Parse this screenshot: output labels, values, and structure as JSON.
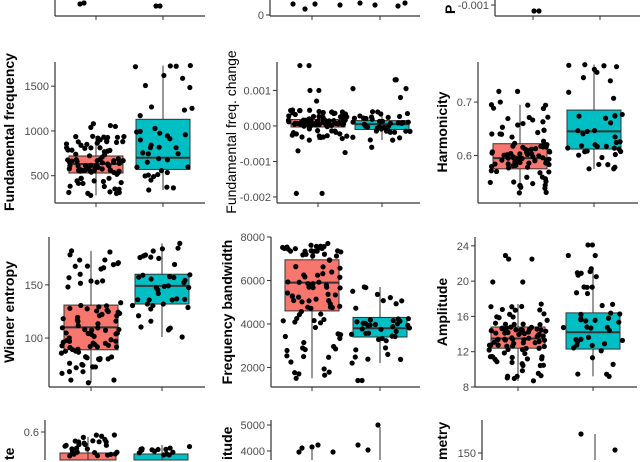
{
  "colors": {
    "group1": "#F8766D",
    "group2": "#00BFC4",
    "points": "#000000",
    "box_line": "#333333",
    "axis": "#333333"
  },
  "chart_data": [
    {
      "type": "boxplot",
      "ylabel": "",
      "yticks": [],
      "partial": "top"
    },
    {
      "type": "boxplot",
      "ylabel": "",
      "yticks": [
        0
      ],
      "partial": "top"
    },
    {
      "type": "boxplot",
      "ylabel": "P",
      "yticks": [
        -0.001
      ],
      "partial": "top"
    },
    {
      "type": "boxplot",
      "ylabel": "Fundamental frequency",
      "ylim": [
        195,
        1770
      ],
      "yticks": [
        500,
        1000,
        1500
      ],
      "groups": [
        {
          "color": "#F8766D",
          "q1": 530,
          "median": 630,
          "q3": 720,
          "whisker_low": 280,
          "whisker_high": 940,
          "n": 90,
          "outliers": [
            1060,
            1080,
            1050,
            1040
          ]
        },
        {
          "color": "#00BFC4",
          "q1": 570,
          "median": 700,
          "q3": 1130,
          "whisker_low": 340,
          "whisker_high": 1730,
          "n": 40,
          "outliers": []
        }
      ]
    },
    {
      "type": "boxplot",
      "ylabel": "Fundamental freq. change",
      "ylim": [
        -0.00217,
        0.0018
      ],
      "yticks": [
        -0.002,
        -0.001,
        0.0,
        0.001
      ],
      "tick_labels": [
        "-0.002",
        "-0.001",
        "0.000",
        "0.001"
      ],
      "groups": [
        {
          "color": "#F8766D",
          "q1": -3e-05,
          "median": 5e-05,
          "q3": 0.00018,
          "whisker_low": -0.0004,
          "whisker_high": 0.00045,
          "n": 90,
          "outliers": [
            0.0017,
            0.0017,
            0.001,
            0.001,
            0.0007,
            -0.0007,
            -0.00075,
            -0.0019,
            -0.0019
          ]
        },
        {
          "color": "#00BFC4",
          "q1": -0.0001,
          "median": 5e-05,
          "q3": 0.00015,
          "whisker_low": -0.0004,
          "whisker_high": 0.0004,
          "n": 40,
          "outliers": [
            0.0013,
            0.0013,
            0.00105,
            0.00105,
            0.0008,
            -0.0006
          ]
        }
      ]
    },
    {
      "type": "boxplot",
      "ylabel": "Harmonicity",
      "ylim": [
        0.511,
        0.775
      ],
      "yticks": [
        0.6,
        0.7
      ],
      "groups": [
        {
          "color": "#F8766D",
          "q1": 0.575,
          "median": 0.595,
          "q3": 0.622,
          "whisker_low": 0.53,
          "whisker_high": 0.695,
          "n": 90,
          "outliers": [
            0.72,
            0.72,
            0.7
          ]
        },
        {
          "color": "#00BFC4",
          "q1": 0.612,
          "median": 0.645,
          "q3": 0.685,
          "whisker_low": 0.575,
          "whisker_high": 0.77,
          "n": 40,
          "outliers": []
        }
      ]
    },
    {
      "type": "boxplot",
      "ylabel": "Wiener entropy",
      "ylim": [
        54,
        195
      ],
      "yticks": [
        100,
        150
      ],
      "groups": [
        {
          "color": "#F8766D",
          "q1": 89,
          "median": 110,
          "q3": 131,
          "whisker_low": 58,
          "whisker_high": 182,
          "n": 90,
          "outliers": []
        },
        {
          "color": "#00BFC4",
          "q1": 132,
          "median": 149,
          "q3": 160,
          "whisker_low": 101,
          "whisker_high": 189,
          "n": 40,
          "outliers": []
        }
      ]
    },
    {
      "type": "boxplot",
      "ylabel": "Frequency bandwidth",
      "ylim": [
        1100,
        8000
      ],
      "yticks": [
        2000,
        4000,
        6000,
        8000
      ],
      "groups": [
        {
          "color": "#F8766D",
          "q1": 4600,
          "median": 5900,
          "q3": 6950,
          "whisker_low": 1500,
          "whisker_high": 7700,
          "n": 90,
          "outliers": []
        },
        {
          "color": "#00BFC4",
          "q1": 3400,
          "median": 3800,
          "q3": 4300,
          "whisker_low": 2200,
          "whisker_high": 5700,
          "n": 40,
          "outliers": [
            1400,
            1400
          ]
        }
      ]
    },
    {
      "type": "boxplot",
      "ylabel": "Amplitude",
      "ylim": [
        8,
        25
      ],
      "yticks": [
        8,
        12,
        16,
        20,
        24
      ],
      "groups": [
        {
          "color": "#F8766D",
          "q1": 12.4,
          "median": 13.5,
          "q3": 14.8,
          "whisker_low": 8.7,
          "whisker_high": 17.4,
          "n": 90,
          "outliers": [
            22.9,
            22.5,
            22.5,
            19.9,
            19.9
          ]
        },
        {
          "color": "#00BFC4",
          "q1": 12.3,
          "median": 14.2,
          "q3": 16.4,
          "whisker_low": 9.2,
          "whisker_high": 21.4,
          "n": 40,
          "outliers": [
            24.1,
            24.1,
            22.9,
            22.9
          ]
        }
      ]
    },
    {
      "type": "boxplot",
      "ylabel": "te",
      "yticks": [
        0.6
      ],
      "partial": "bottom"
    },
    {
      "type": "boxplot",
      "ylabel": "itude",
      "yticks": [
        4000,
        5000
      ],
      "partial": "bottom"
    },
    {
      "type": "boxplot",
      "ylabel": "metry",
      "yticks": [
        150
      ],
      "partial": "bottom"
    }
  ]
}
